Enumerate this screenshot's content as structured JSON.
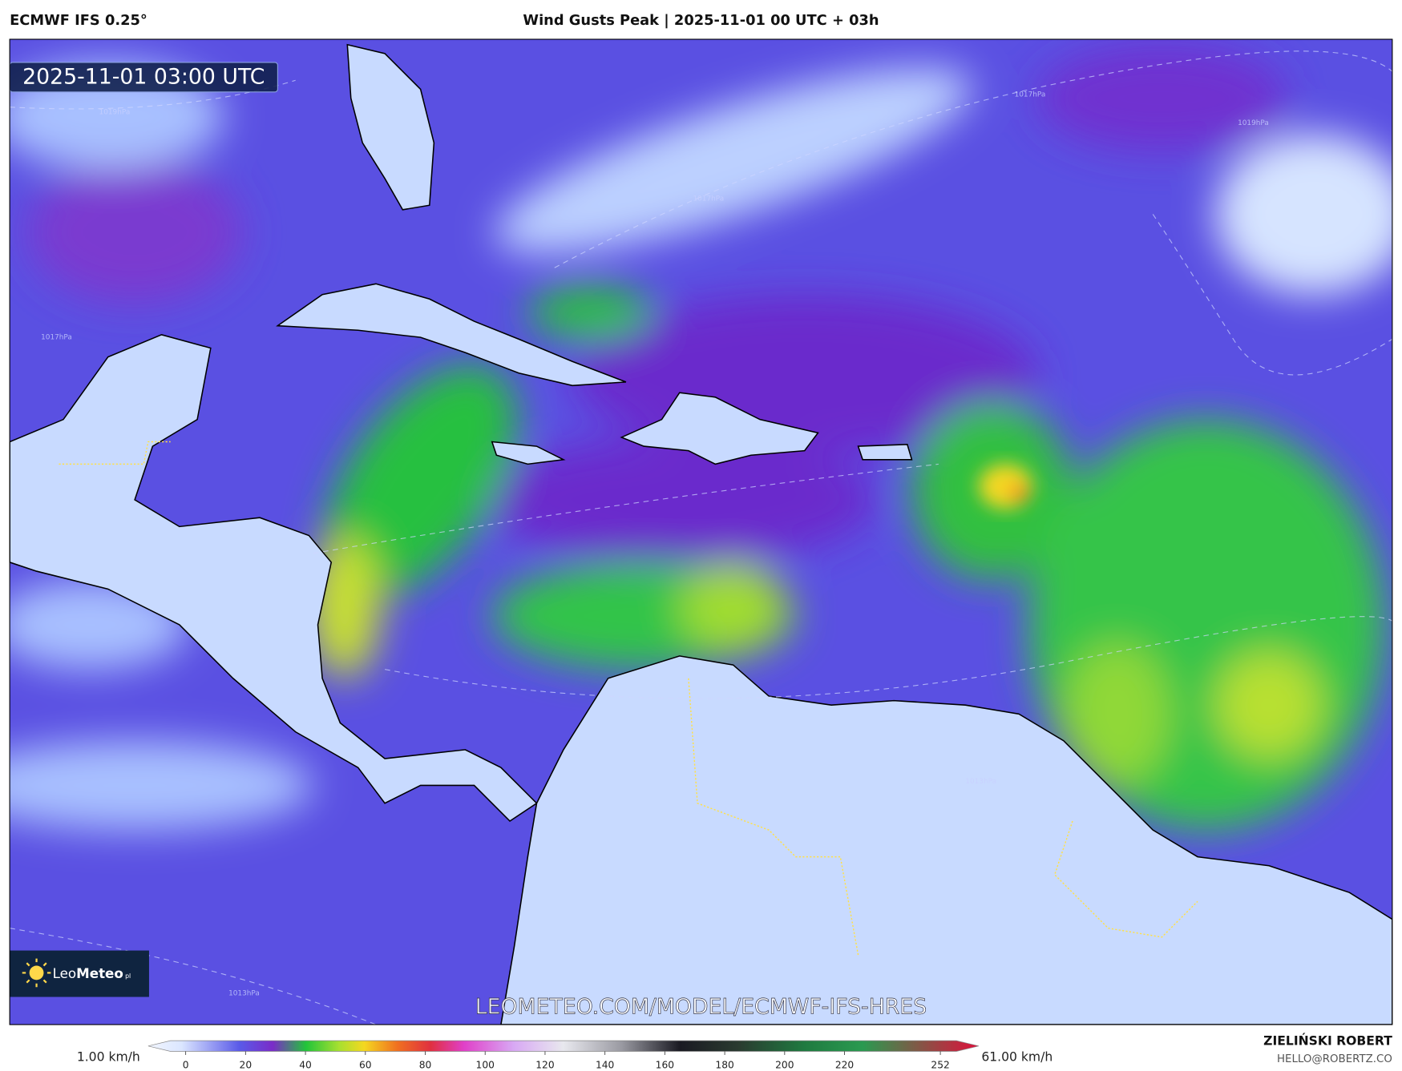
{
  "header": {
    "model": "ECMWF IFS 0.25°",
    "title": "Wind Gusts Peak | 2025-11-01 00 UTC + 03h"
  },
  "map": {
    "timestamp": "2025-11-01 03:00 UTC",
    "watermark": "LEOMETEO.COM/MODEL/ECMWF-IFS-HRES",
    "logo": {
      "light": "Leo",
      "bold": "Meteo",
      "suffix": "pl"
    },
    "isobar_labels": [
      "1019hPa",
      "1017hPa",
      "1019hPa",
      "1017hPa",
      "1017hPa",
      "1013hPa",
      "1013hPa"
    ]
  },
  "legend": {
    "min_label": "1.00 km/h",
    "max_label": "61.00 km/h",
    "ticks": [
      0,
      20,
      40,
      60,
      80,
      100,
      120,
      140,
      160,
      180,
      200,
      220,
      252
    ]
  },
  "credits": {
    "author": "ZIELIŃSKI ROBERT",
    "email": "HELLO@ROBERTZ.CO"
  }
}
